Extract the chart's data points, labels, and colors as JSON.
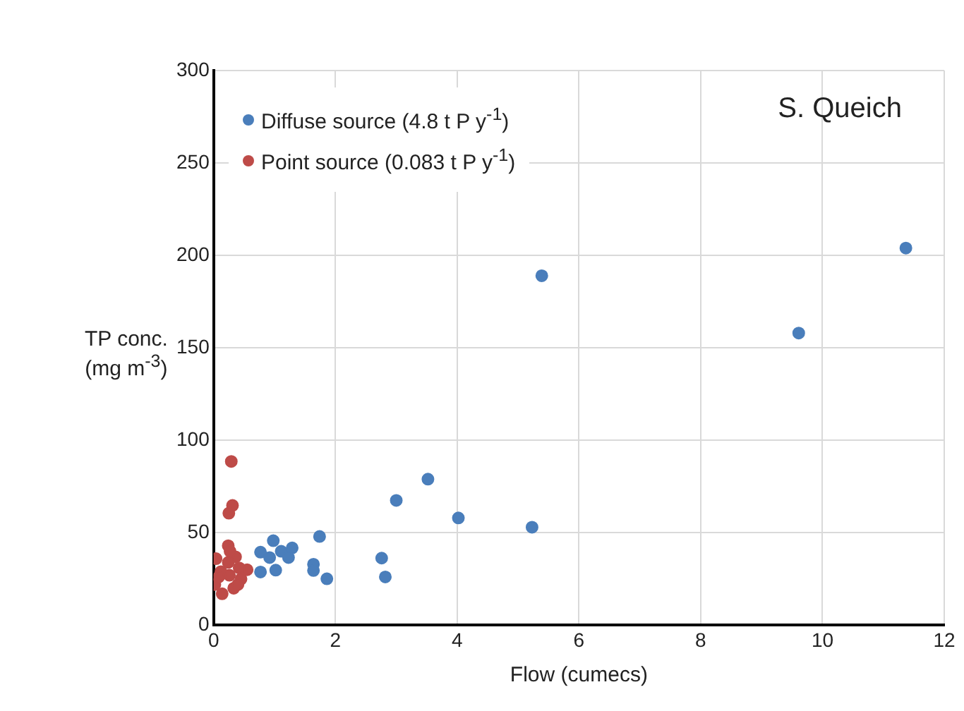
{
  "chart_data": {
    "type": "scatter",
    "xlabel": "Flow (cumecs)",
    "ylabel": "TP conc. (mg m$^{-3}$)",
    "annotations": [
      "S. Queich"
    ],
    "xlim": [
      0,
      12
    ],
    "xticks": [
      0,
      2,
      4,
      6,
      8,
      10,
      12
    ],
    "ylim": [
      0,
      300
    ],
    "yticks": [
      0,
      50,
      100,
      150,
      200,
      250,
      300
    ],
    "grid": true,
    "legend": "top left",
    "marker": "circle",
    "series": [
      {
        "name": "Diffuse source  (4.8 t P y$^{-1}$)",
        "color": "#4a7ebb",
        "x": [
          5.39,
          9.61,
          11.37,
          3.0,
          3.52,
          4.02,
          5.23,
          0.98,
          0.77,
          0.92,
          1.11,
          1.29,
          1.23,
          0.77,
          1.02,
          1.74,
          1.64,
          1.64,
          1.86,
          2.76,
          2.82
        ],
        "values": [
          189,
          158,
          204,
          67.5,
          79,
          58,
          53,
          45.7,
          39.5,
          36.6,
          40,
          41.8,
          36.6,
          28.8,
          29.8,
          48,
          33,
          29.6,
          25.1,
          36.3,
          26.1
        ]
      },
      {
        "name": "Point source (0.083 t P y$^{-1}$)",
        "color": "#be4b48",
        "x": [
          0.29,
          0.31,
          0.25,
          0.04,
          0.24,
          0.55,
          0.45,
          0.14,
          0.02,
          0.36,
          0.42,
          0.33,
          0.26,
          0.12,
          0.27,
          0.4,
          0.08,
          0.24
        ],
        "values": [
          88.6,
          64.8,
          60.6,
          36,
          43,
          30,
          25,
          17,
          22,
          37,
          31,
          20,
          27,
          29,
          40,
          22,
          26,
          34
        ]
      }
    ]
  }
}
